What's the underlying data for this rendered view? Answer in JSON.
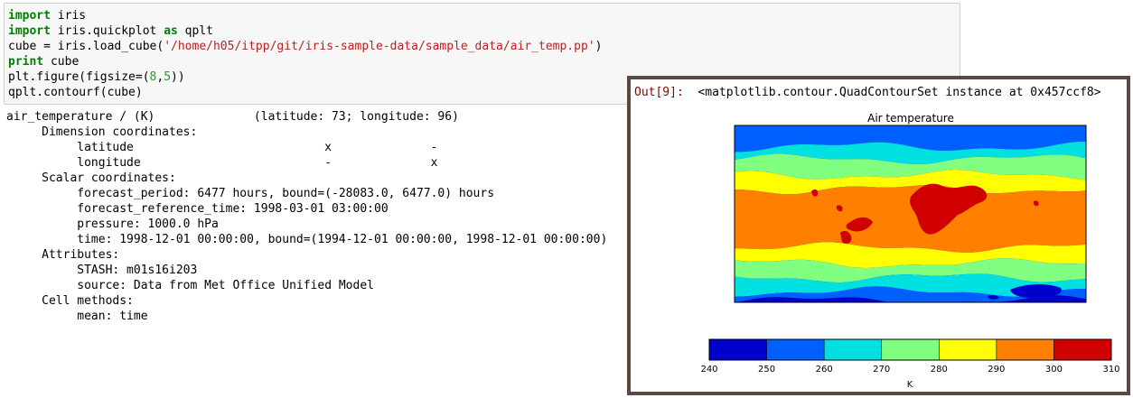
{
  "code_cell": {
    "lines": [
      [
        {
          "t": "import",
          "c": "kw"
        },
        {
          "t": " iris",
          "c": ""
        }
      ],
      [
        {
          "t": "import",
          "c": "kw"
        },
        {
          "t": " iris.quickplot ",
          "c": ""
        },
        {
          "t": "as",
          "c": "kw"
        },
        {
          "t": " qplt",
          "c": ""
        }
      ],
      [
        {
          "t": "cube = iris.load_cube(",
          "c": ""
        },
        {
          "t": "'/home/h05/itpp/git/iris-sample-data/sample_data/air_temp.pp'",
          "c": "str"
        },
        {
          "t": ")",
          "c": ""
        }
      ],
      [
        {
          "t": "print",
          "c": "kw"
        },
        {
          "t": " cube",
          "c": ""
        }
      ],
      [
        {
          "t": "plt.figure(figsize=(",
          "c": ""
        },
        {
          "t": "8",
          "c": "num"
        },
        {
          "t": ",",
          "c": ""
        },
        {
          "t": "5",
          "c": "num"
        },
        {
          "t": "))",
          "c": ""
        }
      ],
      [
        {
          "t": "qplt.contourf(cube)",
          "c": ""
        }
      ]
    ]
  },
  "print_output": {
    "lines": [
      "air_temperature / (K)              (latitude: 73; longitude: 96)",
      "     Dimension coordinates:",
      "          latitude                           x              -",
      "          longitude                          -              x",
      "     Scalar coordinates:",
      "          forecast_period: 6477 hours, bound=(-28083.0, 6477.0) hours",
      "          forecast_reference_time: 1998-03-01 03:00:00",
      "          pressure: 1000.0 hPa",
      "          time: 1998-12-01 00:00:00, bound=(1994-12-01 00:00:00, 1998-12-01 00:00:00)",
      "     Attributes:",
      "          STASH: m01s16i203",
      "          source: Data from Met Office Unified Model",
      "     Cell methods:",
      "          mean: time"
    ]
  },
  "result": {
    "prompt": "Out[9]:",
    "text": "<matplotlib.contour.QuadContourSet instance at 0x457ccf8>"
  },
  "chart_data": {
    "type": "heatmap",
    "title": "Air temperature",
    "colorbar": {
      "label": "K",
      "levels": [
        240,
        250,
        260,
        270,
        280,
        290,
        300,
        310
      ],
      "ticks": [
        "240",
        "250",
        "260",
        "270",
        "280",
        "290",
        "300",
        "310"
      ],
      "colors": [
        "#0000cd",
        "#0060ff",
        "#00e0e0",
        "#80ff80",
        "#ffff00",
        "#ff8000",
        "#d00000"
      ],
      "orientation": "horizontal"
    },
    "latitude_bands_north_to_south": [
      {
        "level_band": "250-260",
        "color": "#0060ff"
      },
      {
        "level_band": "260-270",
        "color": "#00e0e0"
      },
      {
        "level_band": "270-280",
        "color": "#80ff80"
      },
      {
        "level_band": "280-290",
        "color": "#ffff00"
      },
      {
        "level_band": "290-300",
        "color": "#ff8000"
      },
      {
        "level_band": "280-290",
        "color": "#ffff00"
      },
      {
        "level_band": "270-280",
        "color": "#80ff80"
      },
      {
        "level_band": "260-270",
        "color": "#00e0e0"
      },
      {
        "level_band": "250-260",
        "color": "#0060ff"
      }
    ]
  }
}
